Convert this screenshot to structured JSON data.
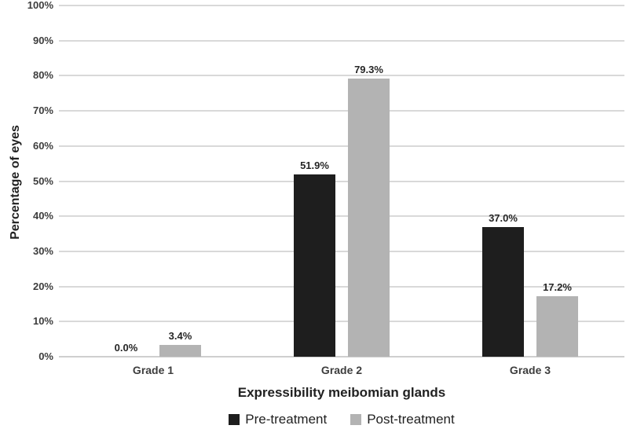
{
  "chart_data": {
    "type": "bar",
    "title": "",
    "xlabel": "Expressibility meibomian glands",
    "ylabel": "Percentage of eyes",
    "categories": [
      "Grade 1",
      "Grade 2",
      "Grade 3"
    ],
    "series": [
      {
        "name": "Pre-treatment",
        "color": "#1e1e1e",
        "values": [
          0.0,
          51.9,
          37.0
        ],
        "labels": [
          "0.0%",
          "51.9%",
          "37.0%"
        ]
      },
      {
        "name": "Post-treatment",
        "color": "#b3b3b3",
        "values": [
          3.4,
          79.3,
          17.2
        ],
        "labels": [
          "3.4%",
          "79.3%",
          "17.2%"
        ]
      }
    ],
    "ylim": [
      0,
      100
    ],
    "ytick_step": 10,
    "ytick_suffix": "%",
    "grid": true,
    "legend_position": "bottom"
  },
  "colors": {
    "gridline": "#d9d9d9",
    "axis_line": "#cfcfcf",
    "tick_text": "#3d3d3d",
    "label_text": "#262626",
    "background": "#ffffff"
  }
}
